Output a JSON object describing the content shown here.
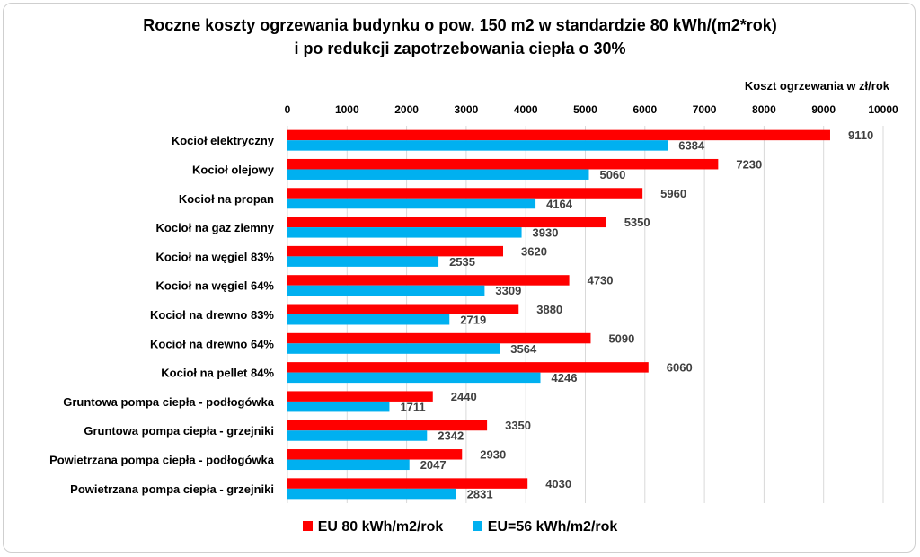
{
  "chart_data": {
    "type": "bar",
    "orientation": "horizontal",
    "title": "Roczne koszty ogrzewania budynku o pow. 150 m2 w standardzie 80 kWh/(m2*rok)",
    "subtitle": "i po redukcji zapotrzebowania ciepła o 30%",
    "xlabel": "Koszt ogrzewania w zł/rok",
    "ylabel": "",
    "xlim": [
      0,
      10000
    ],
    "xticks": [
      "0",
      "1000",
      "2000",
      "3000",
      "4000",
      "5000",
      "6000",
      "7000",
      "8000",
      "9000",
      "10000"
    ],
    "grid": true,
    "legend_position": "bottom",
    "categories": [
      "Kocioł elektryczny",
      "Kocioł olejowy",
      "Kocioł na propan",
      "Kocioł na gaz ziemny",
      "Kocioł na węgiel 83%",
      "Kocioł na węgiel 64%",
      "Kocioł na drewno 83%",
      "Kocioł na drewno  64%",
      "Kocioł na pellet 84%",
      "Gruntowa pompa ciepła - podłogówka",
      "Gruntowa pompa ciepła - grzejniki",
      "Powietrzana pompa ciepła - podłogówka",
      "Powietrzana pompa ciepła - grzejniki"
    ],
    "series": [
      {
        "name": "EU 80 kWh/m2/rok",
        "color": "#ff0000",
        "values": [
          9110,
          7230,
          5960,
          5350,
          3620,
          4730,
          3880,
          5090,
          6060,
          2440,
          3350,
          2930,
          4030
        ]
      },
      {
        "name": "EU=56 kWh/m2/rok",
        "color": "#00b0f0",
        "values": [
          6384,
          5060,
          4164,
          3930,
          2535,
          3309,
          2719,
          3564,
          4246,
          1711,
          2342,
          2047,
          2831
        ]
      }
    ]
  }
}
